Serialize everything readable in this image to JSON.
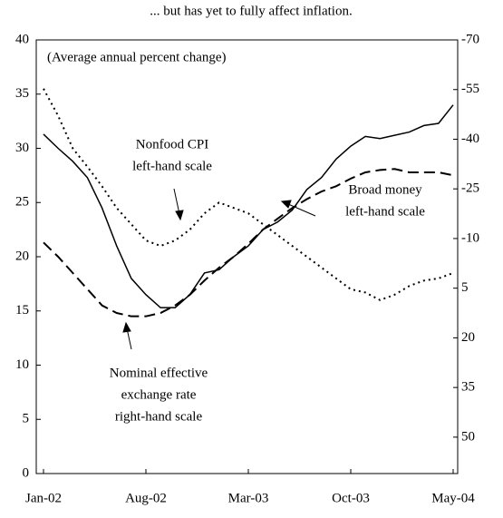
{
  "chart_data": {
    "type": "line",
    "title": "... but has yet to fully affect inflation.",
    "subtitle": "(Average annual percent change)",
    "categories": [
      "Jan-02",
      null,
      null,
      null,
      null,
      null,
      null,
      "Aug-02",
      null,
      null,
      null,
      null,
      null,
      null,
      "Mar-03",
      null,
      null,
      null,
      null,
      null,
      null,
      "Oct-03",
      null,
      null,
      null,
      null,
      null,
      null,
      "May-04"
    ],
    "series": [
      {
        "name": "Broad money",
        "color": "#000000",
        "dash": "solid",
        "axis": "y",
        "values": [
          31.3,
          30.0,
          28.8,
          27.3,
          24.5,
          21.0,
          18.0,
          16.5,
          15.3,
          15.3,
          16.5,
          18.5,
          18.8,
          20.0,
          21.0,
          22.5,
          23.2,
          24.3,
          26.2,
          27.3,
          29.0,
          30.2,
          31.1,
          30.9,
          31.2,
          31.5,
          32.1,
          32.3,
          34.0
        ]
      },
      {
        "name": "Nonfood CPI",
        "color": "#000000",
        "dash": "dotted",
        "axis": "y",
        "values": [
          35.5,
          33.0,
          30.0,
          28.3,
          26.5,
          24.5,
          23.0,
          21.5,
          21.0,
          21.5,
          22.5,
          24.0,
          25.0,
          24.5,
          24.0,
          23.0,
          22.0,
          21.0,
          20.0,
          19.0,
          18.0,
          17.0,
          16.7,
          16.0,
          16.5,
          17.3,
          17.8,
          18.0,
          18.5
        ]
      },
      {
        "name": "Nominal effective exchange rate",
        "color": "#000000",
        "dash": "dashed",
        "axis": "y2",
        "values": [
          -8.8,
          -4.5,
          0.4,
          5.3,
          10.2,
          12.5,
          13.5,
          13.5,
          12.5,
          10.2,
          7.0,
          2.7,
          -1.2,
          -4.5,
          -8.4,
          -12.7,
          -16.0,
          -19.2,
          -21.9,
          -24.2,
          -25.8,
          -28.1,
          -30.0,
          -30.7,
          -31.0,
          -30.0,
          -30.0,
          -30.0,
          -29.1
        ]
      }
    ],
    "annotations": [
      {
        "lines": [
          "Nonfood CPI",
          "left-hand scale"
        ]
      },
      {
        "lines": [
          "Broad money",
          "left-hand scale"
        ]
      },
      {
        "lines": [
          "Nominal effective",
          "exchange rate",
          "right-hand scale"
        ]
      }
    ],
    "ylim": [
      0,
      40
    ],
    "yticks": [
      0,
      5,
      10,
      15,
      20,
      25,
      30,
      35,
      40
    ],
    "y2lim": [
      61,
      -70
    ],
    "y2ticks": [
      -70,
      -55,
      -40,
      -25,
      -10,
      5,
      20,
      35,
      50
    ],
    "grid": false
  }
}
